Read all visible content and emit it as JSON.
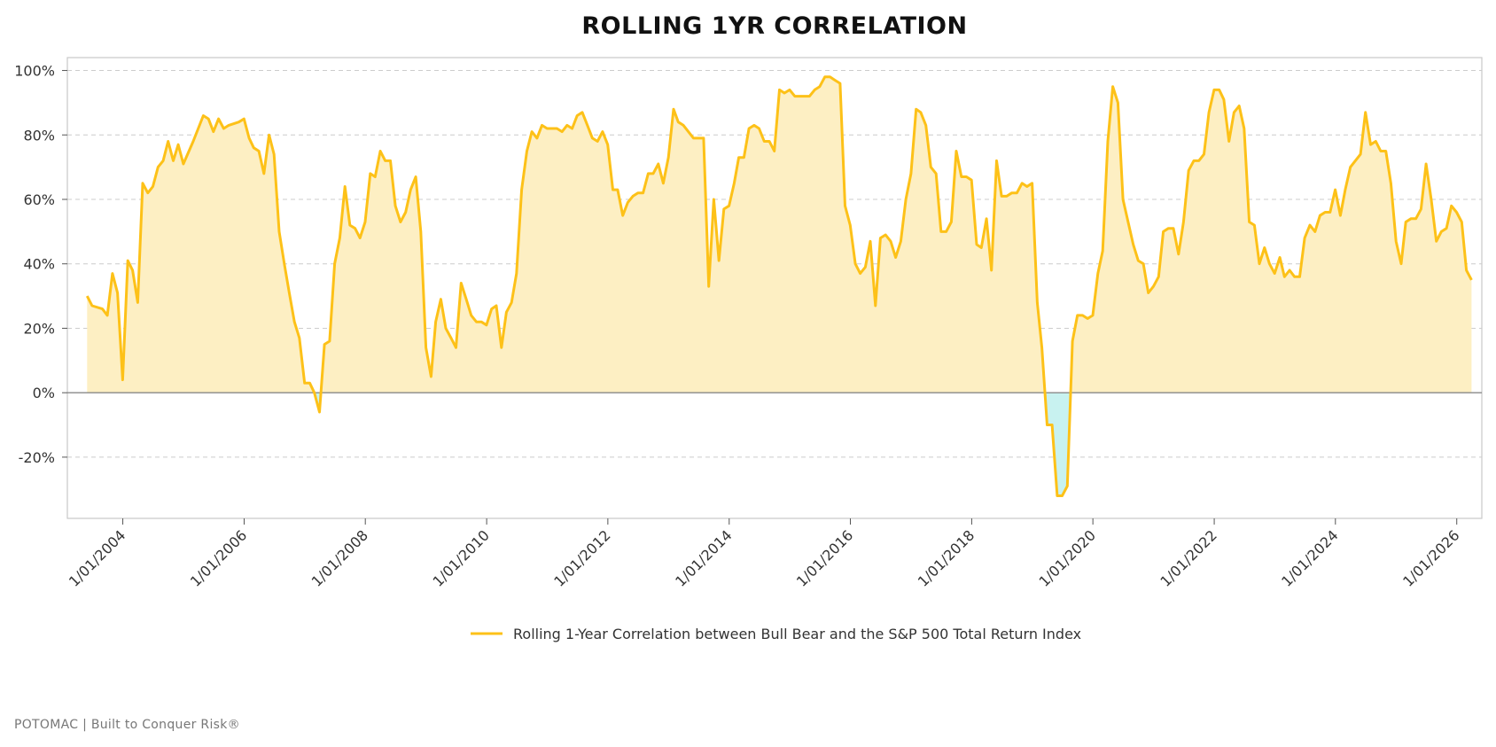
{
  "chart_data": {
    "type": "area",
    "title": "ROLLING 1YR CORRELATION",
    "xlabel": "",
    "ylabel": "",
    "x_range": [
      "2003-02-01",
      "2026-06-01"
    ],
    "ylim": [
      -0.39,
      1.04
    ],
    "y_ticks": [
      1.0,
      0.8,
      0.6,
      0.4,
      0.2,
      0.0,
      -0.2
    ],
    "y_tick_labels": [
      "100%",
      "80%",
      "60%",
      "40%",
      "20%",
      "0%",
      "-20%"
    ],
    "x_ticks": [
      "2004-01-01",
      "2006-01-01",
      "2008-01-01",
      "2010-01-01",
      "2012-01-01",
      "2014-01-01",
      "2016-01-01",
      "2018-01-01",
      "2020-01-01",
      "2022-01-01",
      "2024-01-01",
      "2026-01-01"
    ],
    "x_tick_labels": [
      "1/01/2004",
      "1/01/2006",
      "1/01/2008",
      "1/01/2010",
      "1/01/2012",
      "1/01/2014",
      "1/01/2016",
      "1/01/2018",
      "1/01/2020",
      "1/01/2022",
      "1/01/2024",
      "1/01/2026"
    ],
    "grid": true,
    "legend_position": "bottom-center",
    "colors": {
      "line": "#FDC118",
      "fill_positive": "#FDEFC3",
      "fill_negative": "#C8F2F0",
      "zero_line": "#888888",
      "grid": "#cccccc"
    },
    "series": [
      {
        "name": "Rolling 1-Year Correlation between Bull Bear and the S&P 500 Total Return Index",
        "points": [
          [
            "2003-05-31",
            0.3
          ],
          [
            "2003-06-30",
            0.27
          ],
          [
            "2003-08-31",
            0.26
          ],
          [
            "2003-09-30",
            0.24
          ],
          [
            "2003-10-31",
            0.37
          ],
          [
            "2003-11-30",
            0.31
          ],
          [
            "2003-12-31",
            0.04
          ],
          [
            "2004-01-31",
            0.41
          ],
          [
            "2004-02-29",
            0.38
          ],
          [
            "2004-03-31",
            0.28
          ],
          [
            "2004-04-30",
            0.65
          ],
          [
            "2004-05-31",
            0.62
          ],
          [
            "2004-06-30",
            0.64
          ],
          [
            "2004-07-31",
            0.7
          ],
          [
            "2004-08-31",
            0.72
          ],
          [
            "2004-09-30",
            0.78
          ],
          [
            "2004-10-31",
            0.72
          ],
          [
            "2004-11-30",
            0.77
          ],
          [
            "2004-12-31",
            0.71
          ],
          [
            "2005-02-28",
            0.78
          ],
          [
            "2005-04-30",
            0.86
          ],
          [
            "2005-05-31",
            0.85
          ],
          [
            "2005-06-30",
            0.81
          ],
          [
            "2005-07-31",
            0.85
          ],
          [
            "2005-08-31",
            0.82
          ],
          [
            "2005-09-30",
            0.83
          ],
          [
            "2005-11-30",
            0.84
          ],
          [
            "2005-12-31",
            0.85
          ],
          [
            "2006-01-31",
            0.79
          ],
          [
            "2006-02-28",
            0.76
          ],
          [
            "2006-03-31",
            0.75
          ],
          [
            "2006-04-30",
            0.68
          ],
          [
            "2006-05-31",
            0.8
          ],
          [
            "2006-06-30",
            0.74
          ],
          [
            "2006-07-31",
            0.5
          ],
          [
            "2006-08-31",
            0.4
          ],
          [
            "2006-09-30",
            0.31
          ],
          [
            "2006-10-31",
            0.22
          ],
          [
            "2006-11-30",
            0.17
          ],
          [
            "2006-12-31",
            0.03
          ],
          [
            "2007-01-31",
            0.03
          ],
          [
            "2007-02-28",
            0.0
          ],
          [
            "2007-03-31",
            -0.06
          ],
          [
            "2007-04-30",
            0.15
          ],
          [
            "2007-05-31",
            0.16
          ],
          [
            "2007-06-30",
            0.4
          ],
          [
            "2007-07-31",
            0.48
          ],
          [
            "2007-08-31",
            0.64
          ],
          [
            "2007-09-30",
            0.52
          ],
          [
            "2007-10-31",
            0.51
          ],
          [
            "2007-11-30",
            0.48
          ],
          [
            "2007-12-31",
            0.53
          ],
          [
            "2008-01-31",
            0.68
          ],
          [
            "2008-02-29",
            0.67
          ],
          [
            "2008-03-31",
            0.75
          ],
          [
            "2008-04-30",
            0.72
          ],
          [
            "2008-05-31",
            0.72
          ],
          [
            "2008-06-30",
            0.58
          ],
          [
            "2008-07-31",
            0.53
          ],
          [
            "2008-08-31",
            0.56
          ],
          [
            "2008-09-30",
            0.63
          ],
          [
            "2008-10-31",
            0.67
          ],
          [
            "2008-11-30",
            0.5
          ],
          [
            "2008-12-31",
            0.14
          ],
          [
            "2009-01-31",
            0.05
          ],
          [
            "2009-02-28",
            0.22
          ],
          [
            "2009-03-31",
            0.29
          ],
          [
            "2009-04-30",
            0.2
          ],
          [
            "2009-05-31",
            0.17
          ],
          [
            "2009-06-30",
            0.14
          ],
          [
            "2009-07-31",
            0.34
          ],
          [
            "2009-08-31",
            0.29
          ],
          [
            "2009-09-30",
            0.24
          ],
          [
            "2009-10-31",
            0.22
          ],
          [
            "2009-11-30",
            0.22
          ],
          [
            "2009-12-31",
            0.21
          ],
          [
            "2010-01-31",
            0.26
          ],
          [
            "2010-02-28",
            0.27
          ],
          [
            "2010-03-31",
            0.14
          ],
          [
            "2010-04-30",
            0.25
          ],
          [
            "2010-05-31",
            0.28
          ],
          [
            "2010-06-30",
            0.37
          ],
          [
            "2010-07-31",
            0.63
          ],
          [
            "2010-08-31",
            0.75
          ],
          [
            "2010-09-30",
            0.81
          ],
          [
            "2010-10-31",
            0.79
          ],
          [
            "2010-11-30",
            0.83
          ],
          [
            "2010-12-31",
            0.82
          ],
          [
            "2011-02-28",
            0.82
          ],
          [
            "2011-03-31",
            0.81
          ],
          [
            "2011-04-30",
            0.83
          ],
          [
            "2011-05-31",
            0.82
          ],
          [
            "2011-06-30",
            0.86
          ],
          [
            "2011-07-31",
            0.87
          ],
          [
            "2011-08-31",
            0.83
          ],
          [
            "2011-09-30",
            0.79
          ],
          [
            "2011-10-31",
            0.78
          ],
          [
            "2011-11-30",
            0.81
          ],
          [
            "2011-12-31",
            0.77
          ],
          [
            "2012-01-31",
            0.63
          ],
          [
            "2012-02-29",
            0.63
          ],
          [
            "2012-03-31",
            0.55
          ],
          [
            "2012-04-30",
            0.59
          ],
          [
            "2012-05-31",
            0.61
          ],
          [
            "2012-06-30",
            0.62
          ],
          [
            "2012-07-31",
            0.62
          ],
          [
            "2012-08-31",
            0.68
          ],
          [
            "2012-09-30",
            0.68
          ],
          [
            "2012-10-31",
            0.71
          ],
          [
            "2012-11-30",
            0.65
          ],
          [
            "2012-12-31",
            0.73
          ],
          [
            "2013-01-31",
            0.88
          ],
          [
            "2013-02-28",
            0.84
          ],
          [
            "2013-03-31",
            0.83
          ],
          [
            "2013-04-30",
            0.81
          ],
          [
            "2013-05-31",
            0.79
          ],
          [
            "2013-06-30",
            0.79
          ],
          [
            "2013-07-31",
            0.79
          ],
          [
            "2013-08-31",
            0.33
          ],
          [
            "2013-09-30",
            0.6
          ],
          [
            "2013-10-31",
            0.41
          ],
          [
            "2013-11-30",
            0.57
          ],
          [
            "2013-12-31",
            0.58
          ],
          [
            "2014-01-31",
            0.65
          ],
          [
            "2014-02-28",
            0.73
          ],
          [
            "2014-03-31",
            0.73
          ],
          [
            "2014-04-30",
            0.82
          ],
          [
            "2014-05-31",
            0.83
          ],
          [
            "2014-06-30",
            0.82
          ],
          [
            "2014-07-31",
            0.78
          ],
          [
            "2014-08-31",
            0.78
          ],
          [
            "2014-09-30",
            0.75
          ],
          [
            "2014-10-31",
            0.94
          ],
          [
            "2014-11-30",
            0.93
          ],
          [
            "2014-12-31",
            0.94
          ],
          [
            "2015-01-31",
            0.92
          ],
          [
            "2015-02-28",
            0.92
          ],
          [
            "2015-03-31",
            0.92
          ],
          [
            "2015-04-30",
            0.92
          ],
          [
            "2015-05-31",
            0.94
          ],
          [
            "2015-06-30",
            0.95
          ],
          [
            "2015-07-31",
            0.98
          ],
          [
            "2015-08-31",
            0.98
          ],
          [
            "2015-09-30",
            0.97
          ],
          [
            "2015-10-31",
            0.96
          ],
          [
            "2015-11-30",
            0.58
          ],
          [
            "2015-12-31",
            0.52
          ],
          [
            "2016-01-31",
            0.4
          ],
          [
            "2016-02-29",
            0.37
          ],
          [
            "2016-03-31",
            0.39
          ],
          [
            "2016-04-30",
            0.47
          ],
          [
            "2016-05-31",
            0.27
          ],
          [
            "2016-06-30",
            0.48
          ],
          [
            "2016-07-31",
            0.49
          ],
          [
            "2016-08-31",
            0.47
          ],
          [
            "2016-09-30",
            0.42
          ],
          [
            "2016-10-31",
            0.47
          ],
          [
            "2016-11-30",
            0.6
          ],
          [
            "2016-12-31",
            0.68
          ],
          [
            "2017-01-31",
            0.88
          ],
          [
            "2017-02-28",
            0.87
          ],
          [
            "2017-03-31",
            0.83
          ],
          [
            "2017-04-30",
            0.7
          ],
          [
            "2017-05-31",
            0.68
          ],
          [
            "2017-06-30",
            0.5
          ],
          [
            "2017-07-31",
            0.5
          ],
          [
            "2017-08-31",
            0.53
          ],
          [
            "2017-09-30",
            0.75
          ],
          [
            "2017-10-31",
            0.67
          ],
          [
            "2017-11-30",
            0.67
          ],
          [
            "2017-12-31",
            0.66
          ],
          [
            "2018-01-31",
            0.46
          ],
          [
            "2018-02-28",
            0.45
          ],
          [
            "2018-03-31",
            0.54
          ],
          [
            "2018-04-30",
            0.38
          ],
          [
            "2018-05-31",
            0.72
          ],
          [
            "2018-06-30",
            0.61
          ],
          [
            "2018-07-31",
            0.61
          ],
          [
            "2018-08-31",
            0.62
          ],
          [
            "2018-09-30",
            0.62
          ],
          [
            "2018-10-31",
            0.65
          ],
          [
            "2018-11-30",
            0.64
          ],
          [
            "2018-12-31",
            0.65
          ],
          [
            "2019-01-31",
            0.28
          ],
          [
            "2019-02-28",
            0.14
          ],
          [
            "2019-03-31",
            -0.1
          ],
          [
            "2019-04-30",
            -0.1
          ],
          [
            "2019-05-31",
            -0.32
          ],
          [
            "2019-06-30",
            -0.32
          ],
          [
            "2019-07-31",
            -0.29
          ],
          [
            "2019-08-31",
            0.16
          ],
          [
            "2019-09-30",
            0.24
          ],
          [
            "2019-10-31",
            0.24
          ],
          [
            "2019-11-30",
            0.23
          ],
          [
            "2019-12-31",
            0.24
          ],
          [
            "2020-01-31",
            0.37
          ],
          [
            "2020-02-29",
            0.44
          ],
          [
            "2020-03-31",
            0.78
          ],
          [
            "2020-04-30",
            0.95
          ],
          [
            "2020-05-31",
            0.9
          ],
          [
            "2020-06-30",
            0.6
          ],
          [
            "2020-07-31",
            0.53
          ],
          [
            "2020-08-31",
            0.46
          ],
          [
            "2020-09-30",
            0.41
          ],
          [
            "2020-10-31",
            0.4
          ],
          [
            "2020-11-30",
            0.31
          ],
          [
            "2020-12-31",
            0.33
          ],
          [
            "2021-01-31",
            0.36
          ],
          [
            "2021-02-28",
            0.5
          ],
          [
            "2021-03-31",
            0.51
          ],
          [
            "2021-04-30",
            0.51
          ],
          [
            "2021-05-31",
            0.43
          ],
          [
            "2021-06-30",
            0.53
          ],
          [
            "2021-07-31",
            0.69
          ],
          [
            "2021-08-31",
            0.72
          ],
          [
            "2021-09-30",
            0.72
          ],
          [
            "2021-10-31",
            0.74
          ],
          [
            "2021-11-30",
            0.87
          ],
          [
            "2021-12-31",
            0.94
          ],
          [
            "2022-01-31",
            0.94
          ],
          [
            "2022-02-28",
            0.91
          ],
          [
            "2022-03-31",
            0.78
          ],
          [
            "2022-04-30",
            0.87
          ],
          [
            "2022-05-31",
            0.89
          ],
          [
            "2022-06-30",
            0.82
          ],
          [
            "2022-07-31",
            0.53
          ],
          [
            "2022-08-31",
            0.52
          ],
          [
            "2022-09-30",
            0.4
          ],
          [
            "2022-10-31",
            0.45
          ],
          [
            "2022-11-30",
            0.4
          ],
          [
            "2022-12-31",
            0.37
          ],
          [
            "2023-01-31",
            0.42
          ],
          [
            "2023-02-28",
            0.36
          ],
          [
            "2023-03-31",
            0.38
          ],
          [
            "2023-04-30",
            0.36
          ],
          [
            "2023-05-31",
            0.36
          ],
          [
            "2023-06-30",
            0.48
          ],
          [
            "2023-07-31",
            0.52
          ],
          [
            "2023-08-31",
            0.5
          ],
          [
            "2023-09-30",
            0.55
          ],
          [
            "2023-10-31",
            0.56
          ],
          [
            "2023-11-30",
            0.56
          ],
          [
            "2023-12-31",
            0.63
          ],
          [
            "2024-01-31",
            0.55
          ],
          [
            "2024-02-29",
            0.63
          ],
          [
            "2024-03-31",
            0.7
          ],
          [
            "2024-04-30",
            0.72
          ],
          [
            "2024-05-31",
            0.74
          ],
          [
            "2024-06-30",
            0.87
          ],
          [
            "2024-07-31",
            0.77
          ],
          [
            "2024-08-31",
            0.78
          ],
          [
            "2024-09-30",
            0.75
          ],
          [
            "2024-10-31",
            0.75
          ],
          [
            "2024-11-30",
            0.65
          ],
          [
            "2024-12-31",
            0.47
          ],
          [
            "2025-01-31",
            0.4
          ],
          [
            "2025-02-28",
            0.53
          ],
          [
            "2025-03-31",
            0.54
          ],
          [
            "2025-04-30",
            0.54
          ],
          [
            "2025-05-31",
            0.57
          ],
          [
            "2025-06-30",
            0.71
          ],
          [
            "2025-07-31",
            0.6
          ],
          [
            "2025-08-31",
            0.47
          ],
          [
            "2025-09-30",
            0.5
          ],
          [
            "2025-10-31",
            0.51
          ],
          [
            "2025-11-30",
            0.58
          ],
          [
            "2025-12-31",
            0.56
          ],
          [
            "2026-01-31",
            0.53
          ],
          [
            "2026-02-28",
            0.38
          ],
          [
            "2026-03-31",
            0.35
          ]
        ]
      }
    ]
  },
  "footer": {
    "text": "POTOMAC  |  Built to Conquer Risk®"
  }
}
